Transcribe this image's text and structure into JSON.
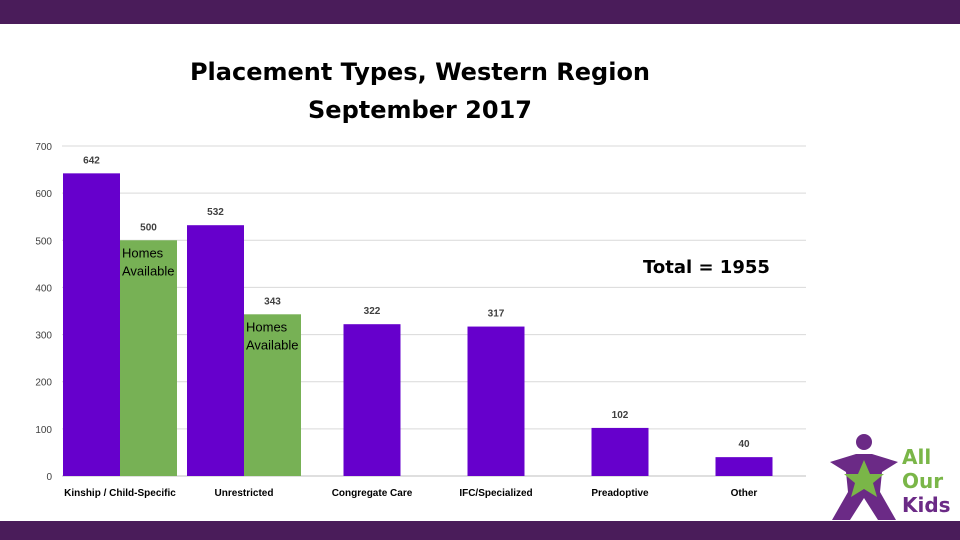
{
  "header": {
    "title_line1": "Placement Types, Western Region",
    "title_line2": "September 2017"
  },
  "annotation": {
    "total": "Total = 1955"
  },
  "logo": {
    "text_lines": [
      "All",
      "Our",
      "Kids"
    ],
    "colors": {
      "purple": "#6b2a86",
      "green": "#7ab648"
    }
  },
  "colors": {
    "band": "#4a1c5a",
    "purple_bar": "#6600cc",
    "green_bar": "#77b155",
    "grid": "#d9d9d9"
  },
  "chart_data": {
    "type": "bar",
    "title": "Placement Types, Western Region September 2017",
    "categories": [
      "Kinship / Child-Specific",
      "Unrestricted",
      "Congregate Care",
      "IFC/Specialized",
      "Preadoptive",
      "Other"
    ],
    "ylim": [
      0,
      700
    ],
    "yticks": [
      0,
      100,
      200,
      300,
      400,
      500,
      600,
      700
    ],
    "grid": true,
    "legend": "none",
    "series": [
      {
        "values": [
          642,
          532,
          322,
          317,
          102,
          40
        ],
        "color": "#6600cc"
      },
      {
        "values": [
          500,
          343,
          null,
          null,
          null,
          null
        ],
        "color": "#77b155",
        "bar_label": "Homes Available"
      }
    ]
  }
}
